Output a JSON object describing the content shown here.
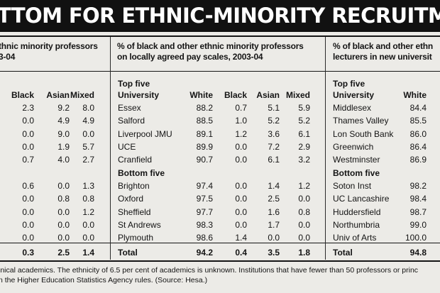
{
  "banner": {
    "title": "TTOM FOR ETHNIC-MINORITY RECRUITMENT"
  },
  "panel1": {
    "heading": [
      "thnic minority professors",
      "3-04"
    ],
    "columns": [
      "Black",
      "Asian",
      "Mixed"
    ],
    "top_rows": [
      [
        "2.3",
        "9.2",
        "8.0"
      ],
      [
        "0.0",
        "4.9",
        "4.9"
      ],
      [
        "0.0",
        "9.0",
        "0.0"
      ],
      [
        "0.0",
        "1.9",
        "5.7"
      ],
      [
        "0.7",
        "4.0",
        "2.7"
      ]
    ],
    "bottom_rows": [
      [
        "0.6",
        "0.0",
        "1.3"
      ],
      [
        "0.0",
        "0.8",
        "0.8"
      ],
      [
        "0.0",
        "0.0",
        "1.2"
      ],
      [
        "0.0",
        "0.0",
        "0.0"
      ],
      [
        "0.0",
        "0.0",
        "0.0"
      ]
    ],
    "total": [
      "0.3",
      "2.5",
      "1.4"
    ]
  },
  "panel2": {
    "heading": [
      "% of black and other ethnic minority professors",
      "on locally agreed pay scales, 2003-04"
    ],
    "top_label": "Top five",
    "university_label": "University",
    "columns": [
      "White",
      "Black",
      "Asian",
      "Mixed"
    ],
    "top_rows": [
      {
        "name": "Essex",
        "values": [
          "88.2",
          "0.7",
          "5.1",
          "5.9"
        ]
      },
      {
        "name": "Salford",
        "values": [
          "88.5",
          "1.0",
          "5.2",
          "5.2"
        ]
      },
      {
        "name": "Liverpool JMU",
        "values": [
          "89.1",
          "1.2",
          "3.6",
          "6.1"
        ]
      },
      {
        "name": "UCE",
        "values": [
          "89.9",
          "0.0",
          "7.2",
          "2.9"
        ]
      },
      {
        "name": "Cranfield",
        "values": [
          "90.7",
          "0.0",
          "6.1",
          "3.2"
        ]
      }
    ],
    "bottom_label": "Bottom five",
    "bottom_rows": [
      {
        "name": "Brighton",
        "values": [
          "97.4",
          "0.0",
          "1.4",
          "1.2"
        ]
      },
      {
        "name": "Oxford",
        "values": [
          "97.5",
          "0.0",
          "2.5",
          "0.0"
        ]
      },
      {
        "name": "Sheffield",
        "values": [
          "97.7",
          "0.0",
          "1.6",
          "0.8"
        ]
      },
      {
        "name": "St Andrews",
        "values": [
          "98.3",
          "0.0",
          "1.7",
          "0.0"
        ]
      },
      {
        "name": "Plymouth",
        "values": [
          "98.6",
          "1.4",
          "0.0",
          "0.0"
        ]
      }
    ],
    "total_label": "Total",
    "total": [
      "94.2",
      "0.4",
      "3.5",
      "1.8"
    ]
  },
  "panel3": {
    "heading": [
      "% of black and other ethn",
      "lecturers in new universit"
    ],
    "top_label": "Top five",
    "university_label": "University",
    "columns": [
      "White"
    ],
    "top_rows": [
      {
        "name": "Middlesex",
        "values": [
          "84.4"
        ]
      },
      {
        "name": "Thames Valley",
        "values": [
          "85.5"
        ]
      },
      {
        "name": "Lon South Bank",
        "values": [
          "86.0"
        ]
      },
      {
        "name": "Greenwich",
        "values": [
          "86.4"
        ]
      },
      {
        "name": "Westminster",
        "values": [
          "86.9"
        ]
      }
    ],
    "bottom_label": "Bottom five",
    "bottom_rows": [
      {
        "name": "Soton Inst",
        "values": [
          "98.2"
        ]
      },
      {
        "name": "UC Lancashire",
        "values": [
          "98.4"
        ]
      },
      {
        "name": "Huddersfield",
        "values": [
          "98.7"
        ]
      },
      {
        "name": "Northumbria",
        "values": [
          "99.0"
        ]
      },
      {
        "name": "Univ of Arts",
        "values": [
          "100.0"
        ]
      }
    ],
    "total_label": "Total",
    "total": [
      "94.8"
    ]
  },
  "footnote": [
    "inical academics. The ethnicity of 6.5 per cent of academics is unknown. Institutions that have fewer than 50 professors or princ",
    "n the Higher Education Statistics Agency rules. (Source: Hesa.)"
  ]
}
